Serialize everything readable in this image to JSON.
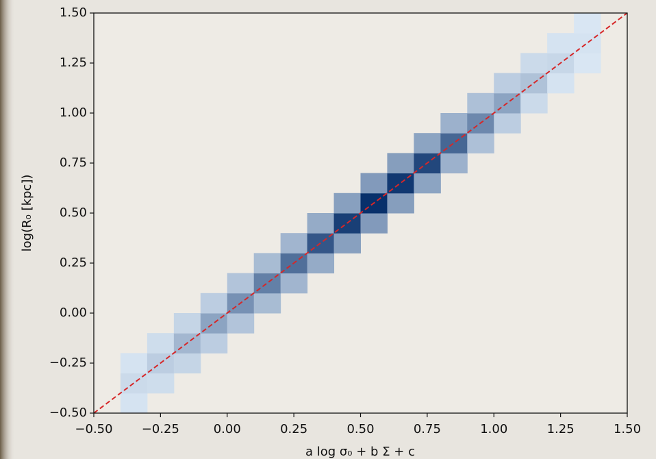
{
  "chart_data": {
    "type": "hist2d",
    "xlabel": "a log σ₀ + b Σ + c",
    "ylabel": "log(R₀ [kpc])",
    "xlim": [
      -0.5,
      1.5
    ],
    "ylim": [
      -0.5,
      1.5
    ],
    "xticks": [
      {
        "value": -0.5,
        "label": "−0.50"
      },
      {
        "value": -0.25,
        "label": "−0.25"
      },
      {
        "value": 0,
        "label": "0.00"
      },
      {
        "value": 0.25,
        "label": "0.25"
      },
      {
        "value": 0.5,
        "label": "0.50"
      },
      {
        "value": 0.75,
        "label": "0.75"
      },
      {
        "value": 1,
        "label": "1.00"
      },
      {
        "value": 1.25,
        "label": "1.25"
      },
      {
        "value": 1.5,
        "label": "1.50"
      }
    ],
    "yticks": [
      {
        "value": -0.5,
        "label": "−0.50"
      },
      {
        "value": -0.25,
        "label": "−0.25"
      },
      {
        "value": 0,
        "label": "0.00"
      },
      {
        "value": 0.25,
        "label": "0.25"
      },
      {
        "value": 0.5,
        "label": "0.50"
      },
      {
        "value": 0.75,
        "label": "0.75"
      },
      {
        "value": 1,
        "label": "1.00"
      },
      {
        "value": 1.25,
        "label": "1.25"
      },
      {
        "value": 1.5,
        "label": "1.50"
      }
    ],
    "color_low": "#deebf7",
    "color_high": "#08306b",
    "x_edges": [
      -0.5,
      -0.4,
      -0.3,
      -0.2,
      -0.1,
      0,
      0.1,
      0.2,
      0.3,
      0.4,
      0.5,
      0.6,
      0.7,
      0.8,
      0.9,
      1.0,
      1.1,
      1.2,
      1.3,
      1.4,
      1.5
    ],
    "y_edges": [
      -0.5,
      -0.4,
      -0.3,
      -0.2,
      -0.1,
      0,
      0.1,
      0.2,
      0.3,
      0.4,
      0.5,
      0.6,
      0.7,
      0.8,
      0.9,
      1.0,
      1.1,
      1.2,
      1.3,
      1.4,
      1.5
    ],
    "z": [
      [
        0,
        0.02,
        0,
        0,
        0,
        0,
        0,
        0,
        0,
        0,
        0,
        0,
        0,
        0,
        0,
        0,
        0,
        0,
        0,
        0
      ],
      [
        0,
        0.05,
        0.04,
        0,
        0,
        0,
        0,
        0,
        0,
        0,
        0,
        0,
        0,
        0,
        0,
        0,
        0,
        0,
        0,
        0
      ],
      [
        0,
        0.02,
        0.1,
        0.07,
        0,
        0,
        0,
        0,
        0,
        0,
        0,
        0,
        0,
        0,
        0,
        0,
        0,
        0,
        0,
        0
      ],
      [
        0,
        0,
        0.04,
        0.2,
        0.1,
        0,
        0,
        0,
        0,
        0,
        0,
        0,
        0,
        0,
        0,
        0,
        0,
        0,
        0,
        0
      ],
      [
        0,
        0,
        0,
        0.07,
        0.3,
        0.14,
        0,
        0,
        0,
        0,
        0,
        0,
        0,
        0,
        0,
        0,
        0,
        0,
        0,
        0
      ],
      [
        0,
        0,
        0,
        0,
        0.1,
        0.4,
        0.18,
        0,
        0,
        0,
        0,
        0,
        0,
        0,
        0,
        0,
        0,
        0,
        0,
        0
      ],
      [
        0,
        0,
        0,
        0,
        0,
        0.14,
        0.5,
        0.21,
        0,
        0,
        0,
        0,
        0,
        0,
        0,
        0,
        0,
        0,
        0,
        0
      ],
      [
        0,
        0,
        0,
        0,
        0,
        0,
        0.18,
        0.6,
        0.26,
        0,
        0,
        0,
        0,
        0,
        0,
        0,
        0,
        0,
        0,
        0
      ],
      [
        0,
        0,
        0,
        0,
        0,
        0,
        0,
        0.21,
        0.75,
        0.32,
        0,
        0,
        0,
        0,
        0,
        0,
        0,
        0,
        0,
        0
      ],
      [
        0,
        0,
        0,
        0,
        0,
        0,
        0,
        0,
        0.26,
        0.9,
        0.35,
        0,
        0,
        0,
        0,
        0,
        0,
        0,
        0,
        0
      ],
      [
        0,
        0,
        0,
        0,
        0,
        0,
        0,
        0,
        0,
        0.32,
        1.0,
        0.33,
        0,
        0,
        0,
        0,
        0,
        0,
        0,
        0
      ],
      [
        0,
        0,
        0,
        0,
        0,
        0,
        0,
        0,
        0,
        0,
        0.35,
        0.95,
        0.3,
        0,
        0,
        0,
        0,
        0,
        0,
        0
      ],
      [
        0,
        0,
        0,
        0,
        0,
        0,
        0,
        0,
        0,
        0,
        0,
        0.33,
        0.85,
        0.23,
        0,
        0,
        0,
        0,
        0,
        0
      ],
      [
        0,
        0,
        0,
        0,
        0,
        0,
        0,
        0,
        0,
        0,
        0,
        0,
        0.3,
        0.65,
        0.16,
        0,
        0,
        0,
        0,
        0
      ],
      [
        0,
        0,
        0,
        0,
        0,
        0,
        0,
        0,
        0,
        0,
        0,
        0,
        0,
        0.23,
        0.45,
        0.1,
        0,
        0,
        0,
        0
      ],
      [
        0,
        0,
        0,
        0,
        0,
        0,
        0,
        0,
        0,
        0,
        0,
        0,
        0,
        0,
        0.16,
        0.3,
        0.05,
        0,
        0,
        0
      ],
      [
        0,
        0,
        0,
        0,
        0,
        0,
        0,
        0,
        0,
        0,
        0,
        0,
        0,
        0,
        0,
        0.1,
        0.15,
        0.02,
        0,
        0
      ],
      [
        0,
        0,
        0,
        0,
        0,
        0,
        0,
        0,
        0,
        0,
        0,
        0,
        0,
        0,
        0,
        0,
        0.05,
        0.06,
        0.01,
        0
      ],
      [
        0,
        0,
        0,
        0,
        0,
        0,
        0,
        0,
        0,
        0,
        0,
        0,
        0,
        0,
        0,
        0,
        0,
        0.02,
        0.02,
        0
      ],
      [
        0,
        0,
        0,
        0,
        0,
        0,
        0,
        0,
        0,
        0,
        0,
        0,
        0,
        0,
        0,
        0,
        0,
        0,
        0.01,
        0
      ]
    ],
    "reference_line": {
      "x": [
        -0.5,
        1.5
      ],
      "y": [
        -0.5,
        1.5
      ],
      "color": "#d62728",
      "dashed": true
    }
  }
}
